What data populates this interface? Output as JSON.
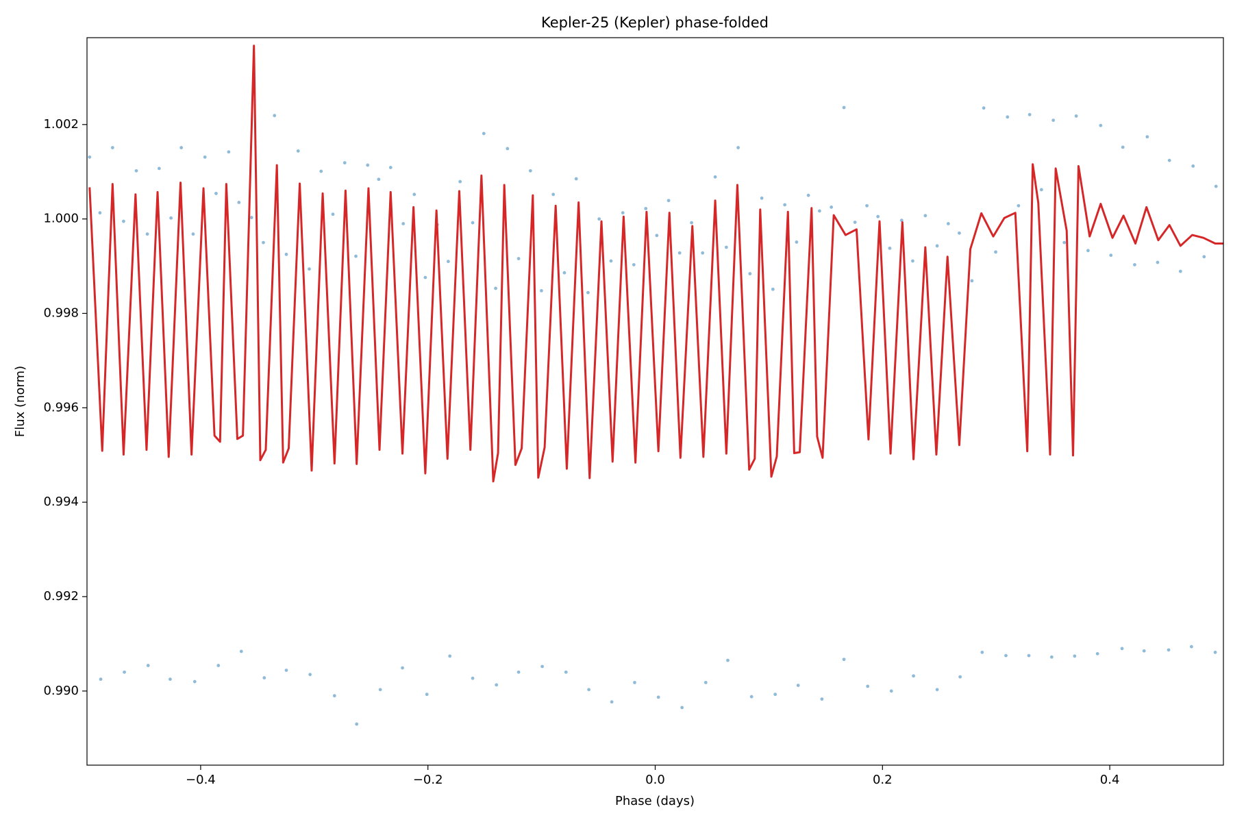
{
  "chart_data": {
    "type": "scatter",
    "title": "Kepler-25 (Kepler) phase-folded",
    "xlabel": "Phase (days)",
    "ylabel": "Flux (norm)",
    "xlim": [
      -0.5,
      0.5
    ],
    "ylim": [
      0.98843,
      1.00384
    ],
    "xticks": [
      {
        "value": -0.4,
        "label": "−0.4"
      },
      {
        "value": -0.2,
        "label": "−0.2"
      },
      {
        "value": 0,
        "label": "0.0"
      },
      0.2,
      0.4
    ],
    "yticks": [
      {
        "value": 0.99,
        "label": "0.990"
      },
      {
        "value": 0.992,
        "label": "0.992"
      },
      {
        "value": 0.994,
        "label": "0.994"
      },
      {
        "value": 0.996,
        "label": "0.996"
      },
      {
        "value": 0.998,
        "label": "0.998"
      },
      {
        "value": 1.0,
        "label": "1.000"
      },
      {
        "value": 1.002,
        "label": "1.002"
      }
    ],
    "series": [
      {
        "type": "scatter",
        "color": "#1f77b4",
        "x": [
          -0.4879,
          -0.4671,
          -0.4462,
          -0.4268,
          -0.4052,
          -0.3844,
          -0.3642,
          -0.344,
          -0.3246,
          -0.3037,
          -0.2822,
          -0.2627,
          -0.2419,
          -0.2224,
          -0.2009,
          -0.1807,
          -0.1606,
          -0.1397,
          -0.1202,
          -0.0994,
          -0.0785,
          -0.0584,
          -0.0382,
          -0.0181,
          0.0028,
          0.0236,
          0.0445,
          0.0639,
          0.0848,
          0.1056,
          0.1258,
          0.1467,
          0.1661,
          0.187,
          0.2078,
          0.2273,
          0.2481,
          0.2683,
          0.2877,
          0.3086,
          0.3288,
          0.3489,
          0.3691,
          0.3892,
          0.4108,
          0.4302,
          0.4518,
          0.4719,
          0.4928,
          -0.4977,
          -0.4886,
          -0.4775,
          -0.4678,
          -0.4566,
          -0.4469,
          -0.4365,
          -0.4261,
          -0.417,
          -0.4066,
          -0.3962,
          -0.3864,
          -0.3753,
          -0.3663,
          -0.3552,
          -0.3448,
          -0.335,
          -0.3246,
          -0.3142,
          -0.3044,
          -0.294,
          -0.2836,
          -0.2732,
          -0.2634,
          -0.253,
          -0.2433,
          -0.2328,
          -0.2217,
          -0.212,
          -0.2023,
          -0.1918,
          -0.1821,
          -0.1717,
          -0.1606,
          -0.1508,
          -0.1404,
          -0.13,
          -0.1202,
          -0.1098,
          -0.1001,
          -0.0897,
          -0.0799,
          -0.0695,
          -0.0591,
          -0.0493,
          -0.0389,
          -0.0285,
          -0.0188,
          -0.0083,
          0.0014,
          0.0118,
          0.0215,
          0.032,
          0.0417,
          0.0528,
          0.0626,
          0.073,
          0.0834,
          0.0938,
          0.1036,
          0.114,
          0.1244,
          0.1348,
          0.1446,
          0.155,
          0.1661,
          0.1758,
          0.1863,
          0.196,
          0.2064,
          0.2169,
          0.2266,
          0.2377,
          0.2481,
          0.2579,
          0.2676,
          0.2787,
          0.2891,
          0.2996,
          0.31,
          0.3197,
          0.3295,
          0.3399,
          0.3503,
          0.36,
          0.3705,
          0.3809,
          0.392,
          0.401,
          0.4115,
          0.4219,
          0.433,
          0.4421,
          0.4525,
          0.4622,
          0.4733,
          0.483,
          0.4935
        ],
        "values": [
          0.99025,
          0.9904,
          0.99054,
          0.99025,
          0.9902,
          0.99054,
          0.99084,
          0.99028,
          0.99044,
          0.99035,
          0.9899,
          0.9893,
          0.99003,
          0.99049,
          0.98993,
          0.99074,
          0.99027,
          0.99013,
          0.9904,
          0.99052,
          0.9904,
          0.99003,
          0.98977,
          0.99018,
          0.98987,
          0.98965,
          0.99018,
          0.99065,
          0.98988,
          0.98993,
          0.99012,
          0.98983,
          0.99067,
          0.9901,
          0.99,
          0.99032,
          0.99003,
          0.9903,
          0.99082,
          0.99075,
          0.99075,
          0.99072,
          0.99074,
          0.99079,
          0.9909,
          0.99085,
          0.99087,
          0.99094,
          0.99082,
          1.00131,
          1.00013,
          1.00151,
          0.99995,
          1.00102,
          0.99968,
          1.00107,
          1.00002,
          1.00151,
          0.99968,
          1.00131,
          1.00054,
          1.00142,
          1.00035,
          1.00003,
          0.9995,
          1.00219,
          0.99925,
          1.00144,
          0.99894,
          1.00101,
          1.0001,
          1.00119,
          0.99921,
          1.00114,
          1.00084,
          1.00109,
          0.9999,
          1.00052,
          0.99876,
          0.99988,
          0.9991,
          1.00079,
          0.99992,
          1.00181,
          0.99853,
          1.00149,
          0.99916,
          1.00102,
          0.99848,
          1.00052,
          0.99886,
          1.00085,
          0.99844,
          1.0,
          0.99911,
          1.00013,
          0.99903,
          1.00022,
          0.99965,
          1.00039,
          0.99928,
          0.99992,
          0.99928,
          1.00089,
          0.9994,
          1.00151,
          0.99884,
          1.00044,
          0.99851,
          1.0003,
          0.99951,
          1.0005,
          1.00017,
          1.00025,
          1.00236,
          0.99993,
          1.00028,
          1.00005,
          0.99938,
          0.99997,
          0.99911,
          1.00007,
          0.99943,
          0.9999,
          0.9997,
          0.99869,
          1.00235,
          0.9993,
          1.00216,
          1.00028,
          1.00221,
          1.00062,
          1.00209,
          0.9995,
          1.00218,
          0.99933,
          1.00198,
          0.99923,
          1.00152,
          0.99903,
          1.00174,
          0.99908,
          1.00124,
          0.99889,
          1.00112,
          0.9992,
          1.00069
        ]
      },
      {
        "type": "line",
        "color": "#d62728",
        "x": [
          -0.4977,
          -0.4866,
          -0.4775,
          -0.4678,
          -0.4573,
          -0.4476,
          -0.4379,
          -0.4281,
          -0.4177,
          -0.408,
          -0.3975,
          -0.3878,
          -0.3829,
          -0.3774,
          -0.3677,
          -0.3628,
          -0.3531,
          -0.3475,
          -0.3427,
          -0.3329,
          -0.3274,
          -0.3225,
          -0.3128,
          -0.3023,
          -0.2926,
          -0.2822,
          -0.2725,
          -0.2627,
          -0.2523,
          -0.2426,
          -0.2328,
          -0.2224,
          -0.2127,
          -0.2023,
          -0.1925,
          -0.1828,
          -0.1724,
          -0.1626,
          -0.1529,
          -0.1425,
          -0.1383,
          -0.1328,
          -0.123,
          -0.1175,
          -0.1077,
          -0.1029,
          -0.0973,
          -0.0876,
          -0.0778,
          -0.0674,
          -0.0577,
          -0.0473,
          -0.0375,
          -0.0278,
          -0.0174,
          -0.0076,
          0.0028,
          0.0125,
          0.0222,
          0.0327,
          0.0424,
          0.0528,
          0.0626,
          0.0723,
          0.0827,
          0.0876,
          0.0924,
          0.1022,
          0.107,
          0.1168,
          0.1223,
          0.1272,
          0.1376,
          0.1425,
          0.1473,
          0.1571,
          0.1675,
          0.1772,
          0.1877,
          0.1974,
          0.2071,
          0.2175,
          0.2273,
          0.2377,
          0.2474,
          0.2572,
          0.2676,
          0.2773,
          0.287,
          0.2975,
          0.3072,
          0.3169,
          0.3274,
          0.3322,
          0.3371,
          0.3475,
          0.3524,
          0.3621,
          0.3677,
          0.3725,
          0.3823,
          0.392,
          0.4024,
          0.4121,
          0.4226,
          0.4323,
          0.4427,
          0.4525,
          0.4622,
          0.4726,
          0.4824,
          0.4928,
          0.4997
        ],
        "values": [
          1.00067,
          0.99509,
          1.00074,
          0.99501,
          1.00052,
          0.99511,
          1.00057,
          0.99496,
          1.00077,
          0.99501,
          1.00065,
          0.99541,
          0.99528,
          1.00074,
          0.99534,
          0.99541,
          1.00367,
          0.99489,
          0.99511,
          1.00114,
          0.99484,
          0.99514,
          1.00075,
          0.99467,
          1.00054,
          0.99482,
          1.0006,
          0.99481,
          1.00065,
          0.99511,
          1.00057,
          0.99503,
          1.00025,
          0.99461,
          1.00018,
          0.99492,
          1.00059,
          0.99511,
          1.00092,
          0.99444,
          0.99504,
          1.00072,
          0.99479,
          0.99514,
          1.0005,
          0.99452,
          0.99516,
          1.00028,
          0.99471,
          1.00035,
          0.99451,
          0.99995,
          0.99486,
          1.00005,
          0.99484,
          1.00015,
          0.99508,
          1.00013,
          0.99494,
          0.99985,
          0.99496,
          1.00039,
          0.99503,
          1.00072,
          0.99469,
          0.99492,
          1.0002,
          0.99454,
          0.99497,
          1.00015,
          0.99504,
          0.99506,
          1.00023,
          0.99539,
          0.99494,
          1.00008,
          0.99966,
          0.99978,
          0.99533,
          0.99995,
          0.99503,
          0.99993,
          0.99491,
          0.9994,
          0.99501,
          0.9992,
          0.99521,
          0.99936,
          1.00012,
          0.99963,
          1.00002,
          1.00013,
          0.99508,
          1.00116,
          1.00034,
          0.99501,
          1.00107,
          0.99975,
          0.99499,
          1.00112,
          0.99963,
          1.00032,
          0.9996,
          1.00007,
          0.99948,
          1.00025,
          0.99955,
          0.99987,
          0.99943,
          0.99966,
          0.9996,
          0.99948,
          0.99948
        ]
      }
    ]
  }
}
